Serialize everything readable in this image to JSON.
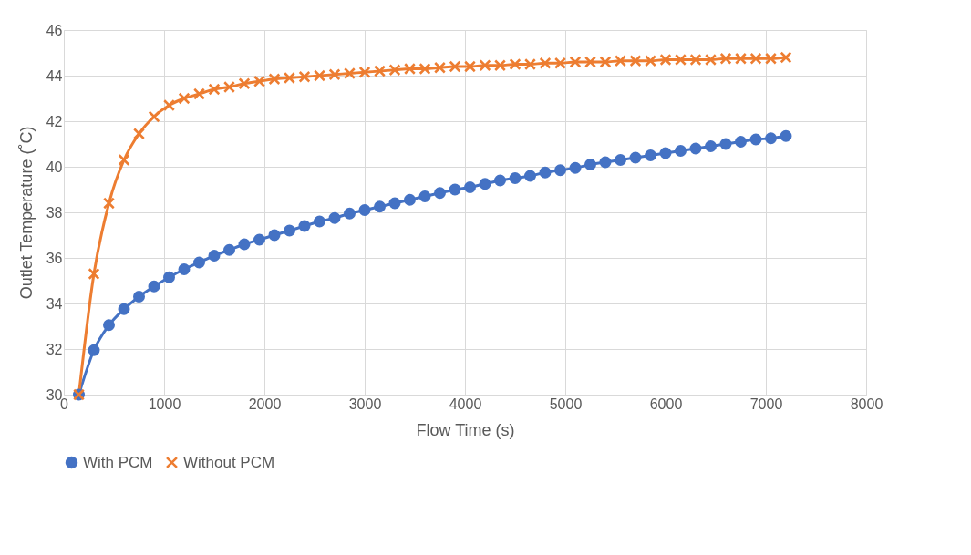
{
  "chart_data": {
    "type": "line",
    "xlabel": "Flow Time (s)",
    "ylabel": "Outlet Temperature (˚C)",
    "x": [
      150,
      300,
      450,
      600,
      750,
      900,
      1050,
      1200,
      1350,
      1500,
      1650,
      1800,
      1950,
      2100,
      2250,
      2400,
      2550,
      2700,
      2850,
      3000,
      3150,
      3300,
      3450,
      3600,
      3750,
      3900,
      4050,
      4200,
      4350,
      4500,
      4650,
      4800,
      4950,
      5100,
      5250,
      5400,
      5550,
      5700,
      5850,
      6000,
      6150,
      6300,
      6450,
      6600,
      6750,
      6900,
      7050,
      7200
    ],
    "series": [
      {
        "name": "With PCM",
        "color": "#4472c4",
        "marker": "circle",
        "values": [
          30.0,
          31.95,
          33.05,
          33.75,
          34.3,
          34.75,
          35.15,
          35.5,
          35.8,
          36.1,
          36.35,
          36.6,
          36.8,
          37.0,
          37.2,
          37.4,
          37.6,
          37.75,
          37.95,
          38.1,
          38.25,
          38.4,
          38.55,
          38.7,
          38.85,
          39.0,
          39.1,
          39.25,
          39.4,
          39.5,
          39.6,
          39.75,
          39.85,
          39.95,
          40.1,
          40.2,
          40.3,
          40.4,
          40.5,
          40.6,
          40.7,
          40.8,
          40.9,
          41.0,
          41.1,
          41.2,
          41.25,
          41.35
        ]
      },
      {
        "name": "Without PCM",
        "color": "#ed7d31",
        "marker": "cross",
        "values": [
          30.0,
          35.3,
          38.4,
          40.3,
          41.45,
          42.2,
          42.7,
          43.0,
          43.2,
          43.4,
          43.5,
          43.65,
          43.75,
          43.85,
          43.9,
          43.95,
          44.0,
          44.05,
          44.1,
          44.15,
          44.2,
          44.25,
          44.3,
          44.3,
          44.35,
          44.4,
          44.4,
          44.45,
          44.45,
          44.5,
          44.5,
          44.55,
          44.55,
          44.6,
          44.6,
          44.6,
          44.65,
          44.65,
          44.65,
          44.7,
          44.7,
          44.7,
          44.7,
          44.75,
          44.75,
          44.75,
          44.75,
          44.8
        ]
      }
    ],
    "xlim": [
      0,
      8000
    ],
    "xticks": [
      0,
      1000,
      2000,
      3000,
      4000,
      5000,
      6000,
      7000,
      8000
    ],
    "ylim": [
      30,
      46
    ],
    "yticks": [
      30,
      32,
      34,
      36,
      38,
      40,
      42,
      44,
      46
    ],
    "grid": true,
    "legend": "bottom",
    "line_style": "solid"
  }
}
